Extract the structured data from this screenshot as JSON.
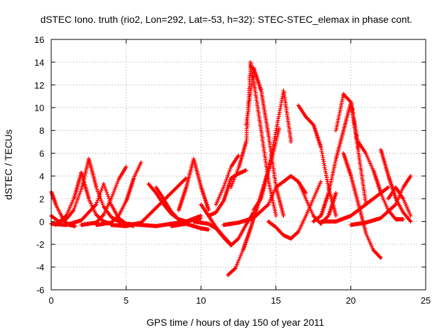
{
  "chart_data": {
    "type": "scatter",
    "title": "dSTEC Iono. truth (rio2, Lon=292, Lat=-53, h=32): STEC-STEC_elemax in phase cont.",
    "xlabel": "GPS time / hours of day 150 of year 2011",
    "ylabel": "dSTEC  / TECUs",
    "xlim": [
      0,
      25
    ],
    "ylim": [
      -6,
      16
    ],
    "xticks": [
      0,
      5,
      10,
      15,
      20,
      25
    ],
    "yticks": [
      -6,
      -4,
      -2,
      0,
      2,
      4,
      6,
      8,
      10,
      12,
      14,
      16
    ],
    "grid": true,
    "marker": "+",
    "color": "#ff0000",
    "series": [
      {
        "x": [
          0.0,
          0.5,
          1.0,
          1.5,
          2.0,
          2.5
        ],
        "y": [
          0.5,
          0.0,
          0.2,
          1.0,
          2.8,
          5.5
        ]
      },
      {
        "x": [
          2.5,
          3.0,
          3.5,
          4.0,
          4.5,
          5.0
        ],
        "y": [
          5.5,
          3.0,
          1.3,
          0.4,
          0.0,
          -0.2
        ]
      },
      {
        "x": [
          0.0,
          0.3,
          0.6,
          0.9,
          1.2,
          1.6
        ],
        "y": [
          2.6,
          1.5,
          0.7,
          0.0,
          -0.3,
          -0.4
        ]
      },
      {
        "x": [
          0.3,
          1.0,
          1.5,
          2.0
        ],
        "y": [
          -0.3,
          0.5,
          2.0,
          4.3
        ]
      },
      {
        "x": [
          2.0,
          2.5,
          3.0,
          3.5,
          4.0
        ],
        "y": [
          4.3,
          2.0,
          0.6,
          0.0,
          -0.2
        ]
      },
      {
        "x": [
          0.0,
          1.0,
          2.0,
          3.0,
          3.5
        ],
        "y": [
          -0.2,
          -0.3,
          0.1,
          1.5,
          3.3
        ]
      },
      {
        "x": [
          3.5,
          4.0,
          4.5,
          5.0,
          5.5
        ],
        "y": [
          3.3,
          1.5,
          0.3,
          -0.2,
          -0.4
        ]
      },
      {
        "x": [
          2.0,
          3.0,
          3.5,
          4.0,
          4.5,
          5.0
        ],
        "y": [
          -0.3,
          -0.1,
          0.6,
          2.0,
          3.7,
          4.8
        ]
      },
      {
        "x": [
          3.0,
          4.0,
          4.5,
          5.0,
          5.5,
          6.0
        ],
        "y": [
          -0.3,
          -0.1,
          0.5,
          1.8,
          3.8,
          5.2
        ]
      },
      {
        "x": [
          4.0,
          5.0,
          6.0,
          7.0,
          8.0,
          9.0
        ],
        "y": [
          -0.3,
          -0.4,
          -0.1,
          1.2,
          2.5,
          3.8
        ]
      },
      {
        "x": [
          6.5,
          7.0,
          7.5,
          8.0,
          8.5,
          9.0
        ],
        "y": [
          3.3,
          2.5,
          1.5,
          0.7,
          0.2,
          0.0
        ]
      },
      {
        "x": [
          7.0,
          7.5,
          8.0,
          8.5,
          9.0,
          10.0
        ],
        "y": [
          3.0,
          2.0,
          0.9,
          0.2,
          0.0,
          0.3
        ]
      },
      {
        "x": [
          5.0,
          6.0,
          7.0,
          8.0,
          9.0,
          10.0
        ],
        "y": [
          -0.2,
          -0.3,
          -0.4,
          -0.2,
          0.0,
          0.5
        ]
      },
      {
        "x": [
          8.0,
          8.5,
          9.0,
          9.5,
          10.0,
          10.5
        ],
        "y": [
          -0.4,
          -0.3,
          -0.2,
          -0.4,
          -0.6,
          -0.7
        ]
      },
      {
        "x": [
          8.5,
          9.0,
          9.5,
          10.0,
          10.5
        ],
        "y": [
          1.0,
          3.0,
          5.5,
          3.0,
          1.0
        ]
      },
      {
        "x": [
          10.0,
          10.5,
          11.0,
          11.5,
          12.0
        ],
        "y": [
          1.5,
          0.5,
          -0.5,
          -1.3,
          -2.0
        ]
      },
      {
        "x": [
          10.5,
          11.0,
          11.5,
          12.0,
          12.5,
          13.0
        ],
        "y": [
          0.5,
          0.8,
          1.8,
          3.8,
          4.2,
          4.5
        ]
      },
      {
        "x": [
          11.0,
          11.5,
          12.0,
          12.5
        ],
        "y": [
          1.5,
          3.0,
          4.8,
          5.8
        ]
      },
      {
        "x": [
          9.5,
          10.5,
          11.0,
          11.5,
          12.0,
          12.5,
          13.0,
          13.5
        ],
        "y": [
          0.0,
          -0.2,
          -0.6,
          -1.4,
          -2.1,
          -1.5,
          -0.3,
          0.8
        ]
      },
      {
        "x": [
          11.8,
          12.3,
          12.8,
          13.3,
          13.8,
          14.3,
          14.8,
          15.2
        ],
        "y": [
          -4.7,
          -4.1,
          -2.5,
          -0.6,
          1.5,
          3.7,
          6.0,
          8.2
        ]
      },
      {
        "x": [
          12.0,
          12.5,
          13.0,
          13.3,
          13.6,
          14.0,
          14.5,
          15.0
        ],
        "y": [
          3.0,
          4.7,
          7.0,
          14.0,
          11.5,
          8.0,
          3.5,
          0.5
        ]
      },
      {
        "x": [
          13.0,
          13.5,
          14.0,
          14.5,
          15.0,
          15.5
        ],
        "y": [
          8.5,
          13.5,
          11.5,
          7.5,
          3.0,
          0.5
        ]
      },
      {
        "x": [
          13.5,
          14.0,
          14.5,
          15.0,
          15.5,
          16.0
        ],
        "y": [
          1.0,
          2.0,
          4.5,
          8.0,
          11.5,
          7.0
        ]
      },
      {
        "x": [
          11.5,
          12.5,
          13.5,
          14.5,
          15.0,
          16.0,
          16.5,
          17.0
        ],
        "y": [
          -0.3,
          -0.1,
          0.3,
          1.5,
          3.0,
          4.0,
          3.5,
          2.5
        ]
      },
      {
        "x": [
          14.5,
          15.0,
          15.5,
          16.0,
          16.5,
          17.0,
          17.5,
          18.0
        ],
        "y": [
          0.0,
          -0.5,
          -1.2,
          -1.5,
          -0.9,
          0.5,
          2.0,
          3.5
        ]
      },
      {
        "x": [
          16.5,
          17.0,
          17.5,
          18.0,
          18.5,
          19.0
        ],
        "y": [
          10.2,
          9.2,
          8.5,
          6.5,
          3.0,
          0.5
        ]
      },
      {
        "x": [
          16.5,
          17.0,
          17.5,
          18.0,
          18.5,
          19.0
        ],
        "y": [
          3.5,
          2.0,
          0.5,
          -0.2,
          0.5,
          2.5
        ]
      },
      {
        "x": [
          17.5,
          18.0,
          18.5,
          19.0,
          19.5,
          20.0,
          20.5
        ],
        "y": [
          0.0,
          0.5,
          2.5,
          5.5,
          8.0,
          10.5,
          6.5
        ]
      },
      {
        "x": [
          19.0,
          19.5,
          20.0,
          20.5,
          21.0
        ],
        "y": [
          8.0,
          11.2,
          10.5,
          6.0,
          1.5
        ]
      },
      {
        "x": [
          19.5,
          20.0,
          20.5,
          21.0,
          21.5,
          22.0
        ],
        "y": [
          6.0,
          4.0,
          1.5,
          -1.0,
          -2.5,
          -3.2
        ]
      },
      {
        "x": [
          20.5,
          21.0,
          21.5,
          22.0,
          22.5,
          23.0,
          23.5
        ],
        "y": [
          7.0,
          6.0,
          4.5,
          2.5,
          1.0,
          0.2,
          0.2
        ]
      },
      {
        "x": [
          22.0,
          22.5,
          23.0,
          23.5,
          24.0
        ],
        "y": [
          6.3,
          4.0,
          2.0,
          0.8,
          0.0
        ]
      },
      {
        "x": [
          20.0,
          21.0,
          22.0,
          23.0,
          23.5,
          24.0
        ],
        "y": [
          -0.3,
          -0.1,
          0.3,
          1.5,
          3.0,
          4.0
        ]
      },
      {
        "x": [
          18.0,
          19.0,
          20.0,
          21.0,
          22.0,
          22.5
        ],
        "y": [
          0.0,
          0.0,
          0.5,
          1.5,
          2.5,
          3.0
        ]
      },
      {
        "x": [
          22.5,
          23.0,
          23.5,
          24.0
        ],
        "y": [
          2.0,
          3.0,
          2.0,
          0.5
        ]
      }
    ]
  }
}
